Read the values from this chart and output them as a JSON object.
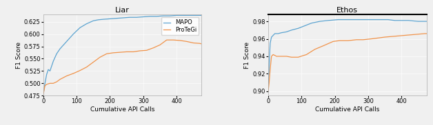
{
  "liar": {
    "title": "Liar",
    "xlabel": "Cumulative API Calls",
    "ylabel": "F1 Score",
    "ylim": [
      0.475,
      0.64
    ],
    "xlim": [
      0,
      475
    ],
    "yticks": [
      0.475,
      0.5,
      0.525,
      0.55,
      0.575,
      0.6,
      0.625
    ],
    "xticks": [
      0,
      100,
      200,
      300,
      400
    ],
    "mapo_x": [
      0,
      5,
      10,
      15,
      20,
      30,
      40,
      50,
      70,
      90,
      110,
      130,
      150,
      165,
      180,
      200,
      220,
      240,
      260,
      280,
      300,
      320,
      340,
      360,
      380,
      400,
      420,
      440,
      460,
      475
    ],
    "mapo_y": [
      0.478,
      0.5,
      0.518,
      0.528,
      0.525,
      0.545,
      0.56,
      0.57,
      0.585,
      0.6,
      0.613,
      0.621,
      0.627,
      0.629,
      0.63,
      0.631,
      0.632,
      0.633,
      0.634,
      0.634,
      0.635,
      0.636,
      0.636,
      0.637,
      0.637,
      0.638,
      0.638,
      0.638,
      0.638,
      0.638
    ],
    "protegi_x": [
      0,
      5,
      10,
      20,
      30,
      40,
      50,
      70,
      90,
      110,
      130,
      150,
      170,
      190,
      210,
      230,
      250,
      270,
      290,
      310,
      330,
      350,
      370,
      390,
      410,
      430,
      450,
      470,
      475
    ],
    "protegi_y": [
      0.478,
      0.495,
      0.498,
      0.5,
      0.5,
      0.503,
      0.508,
      0.515,
      0.52,
      0.526,
      0.533,
      0.543,
      0.553,
      0.56,
      0.562,
      0.563,
      0.564,
      0.564,
      0.566,
      0.567,
      0.572,
      0.578,
      0.588,
      0.588,
      0.587,
      0.585,
      0.582,
      0.581,
      0.58
    ],
    "mapo_color": "#5ba3d0",
    "protegi_color": "#f0934a",
    "legend_labels": [
      "MAPO",
      "ProTeGi"
    ]
  },
  "ethos": {
    "title": "Ethos",
    "xlabel": "Cumulative API Calls",
    "ylabel": "F1 Score",
    "ylim": [
      0.895,
      0.988
    ],
    "xlim": [
      0,
      475
    ],
    "yticks": [
      0.9,
      0.92,
      0.94,
      0.96,
      0.98
    ],
    "xticks": [
      0,
      100,
      200,
      300,
      400
    ],
    "mapo_x": [
      0,
      3,
      6,
      10,
      15,
      20,
      25,
      30,
      40,
      55,
      70,
      90,
      110,
      130,
      155,
      180,
      210,
      240,
      260,
      280,
      305,
      320,
      340,
      360,
      380,
      400,
      420,
      450,
      470,
      475
    ],
    "mapo_y": [
      0.9,
      0.93,
      0.955,
      0.962,
      0.964,
      0.966,
      0.966,
      0.966,
      0.967,
      0.968,
      0.97,
      0.972,
      0.975,
      0.978,
      0.98,
      0.981,
      0.982,
      0.982,
      0.982,
      0.982,
      0.982,
      0.982,
      0.982,
      0.982,
      0.981,
      0.981,
      0.981,
      0.98,
      0.98,
      0.98
    ],
    "protegi_x": [
      0,
      3,
      6,
      10,
      15,
      20,
      25,
      30,
      40,
      55,
      70,
      90,
      115,
      140,
      165,
      195,
      215,
      240,
      265,
      285,
      310,
      330,
      350,
      380,
      410,
      440,
      470,
      475
    ],
    "protegi_y": [
      0.9,
      0.91,
      0.925,
      0.94,
      0.942,
      0.941,
      0.94,
      0.94,
      0.94,
      0.94,
      0.939,
      0.939,
      0.942,
      0.948,
      0.952,
      0.957,
      0.958,
      0.958,
      0.959,
      0.959,
      0.96,
      0.961,
      0.962,
      0.963,
      0.964,
      0.965,
      0.966,
      0.966
    ],
    "mapo_color": "#5ba3d0",
    "protegi_color": "#f0934a"
  },
  "fig_width": 6.28,
  "fig_height": 1.82,
  "dpi": 100,
  "background_color": "#f0f0f0"
}
